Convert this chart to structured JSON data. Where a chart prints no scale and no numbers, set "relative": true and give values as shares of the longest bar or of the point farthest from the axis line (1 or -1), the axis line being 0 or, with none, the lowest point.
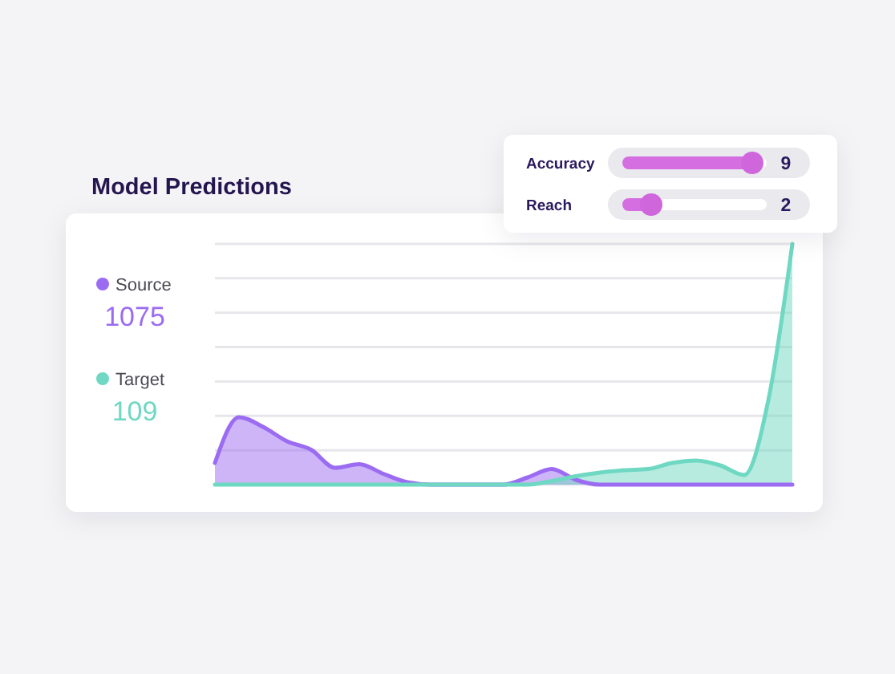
{
  "chart_data": {
    "type": "area",
    "title": "Model Predictions",
    "relative": true,
    "grid": true,
    "legend": "left",
    "categories": [
      null,
      null,
      null,
      null,
      null,
      null,
      null,
      null,
      null,
      null,
      null,
      null,
      null,
      null,
      null,
      null,
      null,
      null,
      null,
      null,
      null,
      null,
      null,
      null,
      null
    ],
    "series": [
      {
        "name": "Source",
        "color": "#9b6cf2",
        "values": [
          0.09,
          0.28,
          0.24,
          0.18,
          0.145,
          0.07,
          0.085,
          0.045,
          0.01,
          0,
          0,
          0,
          0,
          0.03,
          0.065,
          0.02,
          0,
          0,
          0,
          0,
          0,
          0,
          0,
          0,
          0
        ]
      },
      {
        "name": "Target",
        "color": "#6fd8c2",
        "values": [
          0,
          0,
          0,
          0,
          0,
          0,
          0,
          0,
          0,
          0,
          0,
          0,
          0,
          0,
          0.015,
          0.035,
          0.05,
          0.06,
          0.065,
          0.09,
          0.1,
          0.08,
          0.04,
          0.35,
          1
        ]
      }
    ],
    "annotations": [
      "1075",
      "109",
      "Accuracy",
      "9",
      "Reach",
      "2"
    ]
  }
}
